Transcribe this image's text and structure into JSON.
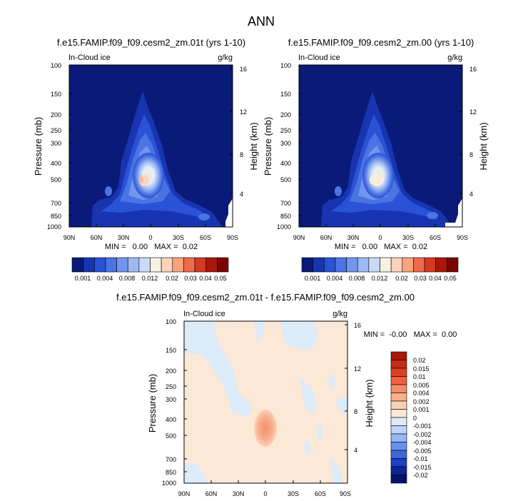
{
  "figure": {
    "title": "ANN"
  },
  "chart_data": [
    {
      "type": "heatmap",
      "title": "f.e15.FAMIP.f09_f09.cesm2_zm.01t (yrs 1-10)",
      "field_label": "In-Cloud ice",
      "units": "g/kg",
      "xlabel": "",
      "ylabel": "Pressure (mb)",
      "y2label": "Height (km)",
      "x_ticks": [
        "90N",
        "60N",
        "30N",
        "0",
        "30S",
        "60S",
        "90S"
      ],
      "y_ticks": [
        "100",
        "150",
        "200",
        "250",
        "300",
        "400",
        "500",
        "700",
        "850",
        "1000"
      ],
      "y2_ticks": [
        "16",
        "12",
        "8",
        "4"
      ],
      "stats_text": "MIN =   0.00   MAX =  0.02",
      "colorbar_labels": [
        "0.001",
        "0.004",
        "0.008",
        "0.012",
        "0.02",
        "0.03",
        "0.04",
        "0.05"
      ],
      "colorbar_colors": [
        "#0a1a78",
        "#1834b0",
        "#2a52d6",
        "#4a74e4",
        "#7196ee",
        "#9db9f4",
        "#c9daf8",
        "#f8f0e0",
        "#fbd2ba",
        "#f8a27e",
        "#ee6a48",
        "#d43a22",
        "#a81808",
        "#7a0402"
      ]
    },
    {
      "type": "heatmap",
      "title": "f.e15.FAMIP.f09_f09.cesm2_zm.00 (yrs 1-10)",
      "field_label": "In-Cloud ice",
      "units": "g/kg",
      "xlabel": "",
      "ylabel": "Pressure (mb)",
      "y2label": "Height (km)",
      "x_ticks": [
        "90N",
        "60N",
        "30N",
        "0",
        "30S",
        "60S",
        "90S"
      ],
      "y_ticks": [
        "100",
        "150",
        "200",
        "250",
        "300",
        "400",
        "500",
        "700",
        "850",
        "1000"
      ],
      "y2_ticks": [
        "16",
        "12",
        "8",
        "4"
      ],
      "stats_text": "MIN =   0.00   MAX =  0.02",
      "colorbar_labels": [
        "0.001",
        "0.004",
        "0.008",
        "0.012",
        "0.02",
        "0.03",
        "0.04",
        "0.05"
      ],
      "colorbar_colors": [
        "#0a1a78",
        "#1834b0",
        "#2a52d6",
        "#4a74e4",
        "#7196ee",
        "#9db9f4",
        "#c9daf8",
        "#f8f0e0",
        "#fbd2ba",
        "#f8a27e",
        "#ee6a48",
        "#d43a22",
        "#a81808",
        "#7a0402"
      ]
    },
    {
      "type": "heatmap",
      "title": "f.e15.FAMIP.f09_f09.cesm2_zm.01t - f.e15.FAMIP.f09_f09.cesm2_zm.00",
      "field_label": "In-Cloud ice",
      "units": "g/kg",
      "xlabel": "",
      "ylabel": "Pressure (mb)",
      "y2label": "Height (km)",
      "x_ticks": [
        "90N",
        "60N",
        "30N",
        "0",
        "30S",
        "60S",
        "90S"
      ],
      "y_ticks": [
        "100",
        "150",
        "200",
        "250",
        "300",
        "400",
        "500",
        "700",
        "850",
        "1000"
      ],
      "y2_ticks": [
        "16",
        "12",
        "8",
        "4"
      ],
      "stats_text": "MIN =  -0.00   MAX =  0.00",
      "colorbar_labels": [
        "0.02",
        "0.015",
        "0.01",
        "0.005",
        "0.004",
        "0.002",
        "0.001",
        "0",
        "-0.001",
        "-0.002",
        "-0.004",
        "-0.005",
        "-0.01",
        "-0.015",
        "-0.02"
      ],
      "colorbar_colors": [
        "#a81808",
        "#c42a14",
        "#dc4022",
        "#ee6040",
        "#f58a68",
        "#f9ae8c",
        "#fbcfb2",
        "#fbe8d6",
        "#dcebfa",
        "#bcd4f8",
        "#94b8f2",
        "#6892e8",
        "#3e66dc",
        "#1e3ec4",
        "#0c2496",
        "#06126a"
      ]
    }
  ]
}
